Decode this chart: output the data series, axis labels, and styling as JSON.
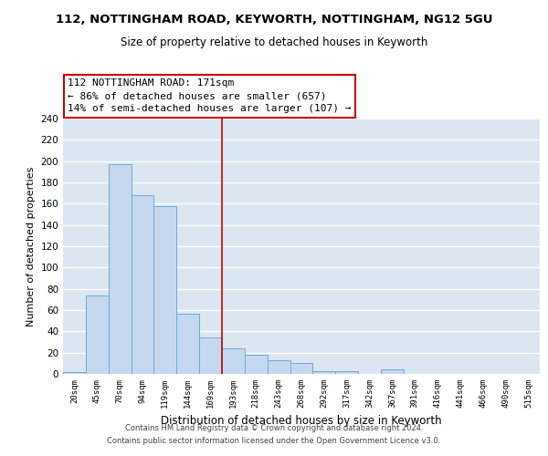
{
  "title": "112, NOTTINGHAM ROAD, KEYWORTH, NOTTINGHAM, NG12 5GU",
  "subtitle": "Size of property relative to detached houses in Keyworth",
  "xlabel": "Distribution of detached houses by size in Keyworth",
  "ylabel": "Number of detached properties",
  "bin_labels": [
    "20sqm",
    "45sqm",
    "70sqm",
    "94sqm",
    "119sqm",
    "144sqm",
    "169sqm",
    "193sqm",
    "218sqm",
    "243sqm",
    "268sqm",
    "292sqm",
    "317sqm",
    "342sqm",
    "367sqm",
    "391sqm",
    "416sqm",
    "441sqm",
    "466sqm",
    "490sqm",
    "515sqm"
  ],
  "bar_values": [
    2,
    74,
    197,
    168,
    158,
    57,
    34,
    24,
    18,
    13,
    10,
    3,
    3,
    0,
    4,
    0,
    0,
    0,
    0,
    0,
    0
  ],
  "bar_color": "#c5d8ef",
  "bar_edge_color": "#6aacd5",
  "property_bin_index": 6,
  "annotation_title": "112 NOTTINGHAM ROAD: 171sqm",
  "annotation_line1": "← 86% of detached houses are smaller (657)",
  "annotation_line2": "14% of semi-detached houses are larger (107) →",
  "annotation_box_color": "#ffffff",
  "annotation_box_edge_color": "#cc0000",
  "vline_color": "#cc0000",
  "ylim": [
    0,
    240
  ],
  "yticks": [
    0,
    20,
    40,
    60,
    80,
    100,
    120,
    140,
    160,
    180,
    200,
    220,
    240
  ],
  "footer_line1": "Contains HM Land Registry data © Crown copyright and database right 2024.",
  "footer_line2": "Contains public sector information licensed under the Open Government Licence v3.0.",
  "bg_color": "#dce6f0"
}
